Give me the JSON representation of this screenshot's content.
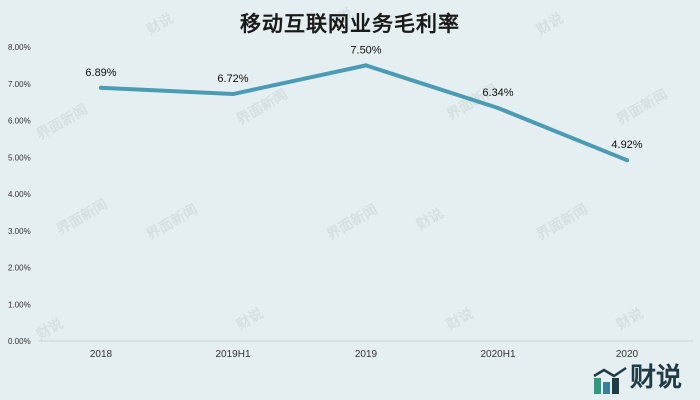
{
  "chart_data": {
    "type": "line",
    "title": "移动互联网业务毛利率",
    "categories": [
      "2018",
      "2019H1",
      "2019",
      "2020H1",
      "2020"
    ],
    "series": [
      {
        "values": [
          6.89,
          6.72,
          7.5,
          6.34,
          4.92
        ]
      }
    ],
    "data_labels": [
      "6.89%",
      "6.72%",
      "7.50%",
      "6.34%",
      "4.92%"
    ],
    "yticks": [
      "0.00%",
      "1.00%",
      "2.00%",
      "3.00%",
      "4.00%",
      "5.00%",
      "6.00%",
      "7.00%",
      "8.00%"
    ],
    "ylim": [
      0,
      8
    ],
    "grid": false,
    "line_color": "#4a9cb4",
    "background": "#e5eef0"
  },
  "watermarks": [
    "界面新闻",
    "财说"
  ],
  "logo": {
    "text": "财说"
  }
}
